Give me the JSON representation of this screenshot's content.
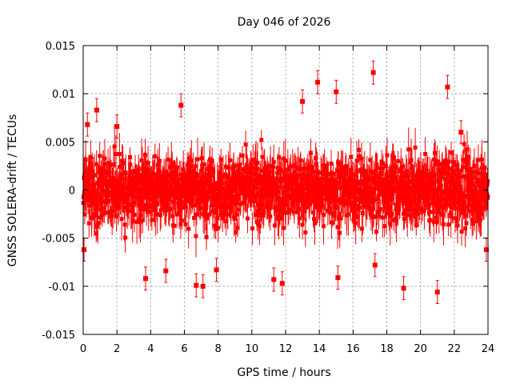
{
  "chart_data": {
    "type": "scatter",
    "title": "Day 046 of 2026",
    "xlabel": "GPS time / hours",
    "ylabel": "GNSS SOLERA-drift / TECUs",
    "xlim": [
      0,
      24
    ],
    "ylim": [
      -0.015,
      0.015
    ],
    "xticks": [
      "0",
      "2",
      "4",
      "6",
      "8",
      "10",
      "12",
      "14",
      "16",
      "18",
      "20",
      "22",
      "24"
    ],
    "yticks": [
      "0.015",
      "0.01",
      "0.005",
      "0",
      "-0.005",
      "-0.01",
      "-0.015"
    ],
    "grid": true,
    "series_color": "#ff0000",
    "marker": "square",
    "error_bars": true,
    "series": [
      {
        "note": "dense time series of drift values with error bars; ~2000 samples across 24 h, mean ~0, spread ~±0.007 TECUs; representative visible extremes listed below",
        "points": [
          {
            "x": 0.05,
            "y": -0.0062
          },
          {
            "x": 0.25,
            "y": 0.0068
          },
          {
            "x": 0.8,
            "y": 0.0083
          },
          {
            "x": 2.0,
            "y": 0.0066
          },
          {
            "x": 3.7,
            "y": -0.0092
          },
          {
            "x": 4.9,
            "y": -0.0084
          },
          {
            "x": 5.8,
            "y": 0.0088
          },
          {
            "x": 6.7,
            "y": -0.0099
          },
          {
            "x": 7.1,
            "y": -0.01
          },
          {
            "x": 7.9,
            "y": -0.0083
          },
          {
            "x": 11.3,
            "y": -0.0093
          },
          {
            "x": 11.8,
            "y": -0.0097
          },
          {
            "x": 13.0,
            "y": 0.0092
          },
          {
            "x": 13.9,
            "y": 0.0112
          },
          {
            "x": 15.0,
            "y": 0.0102
          },
          {
            "x": 15.1,
            "y": -0.0091
          },
          {
            "x": 17.2,
            "y": 0.0122
          },
          {
            "x": 17.3,
            "y": -0.0078
          },
          {
            "x": 19.0,
            "y": -0.0102
          },
          {
            "x": 21.0,
            "y": -0.0106
          },
          {
            "x": 21.6,
            "y": 0.0107
          },
          {
            "x": 22.4,
            "y": 0.006
          },
          {
            "x": 23.9,
            "y": -0.0062
          }
        ]
      }
    ]
  }
}
